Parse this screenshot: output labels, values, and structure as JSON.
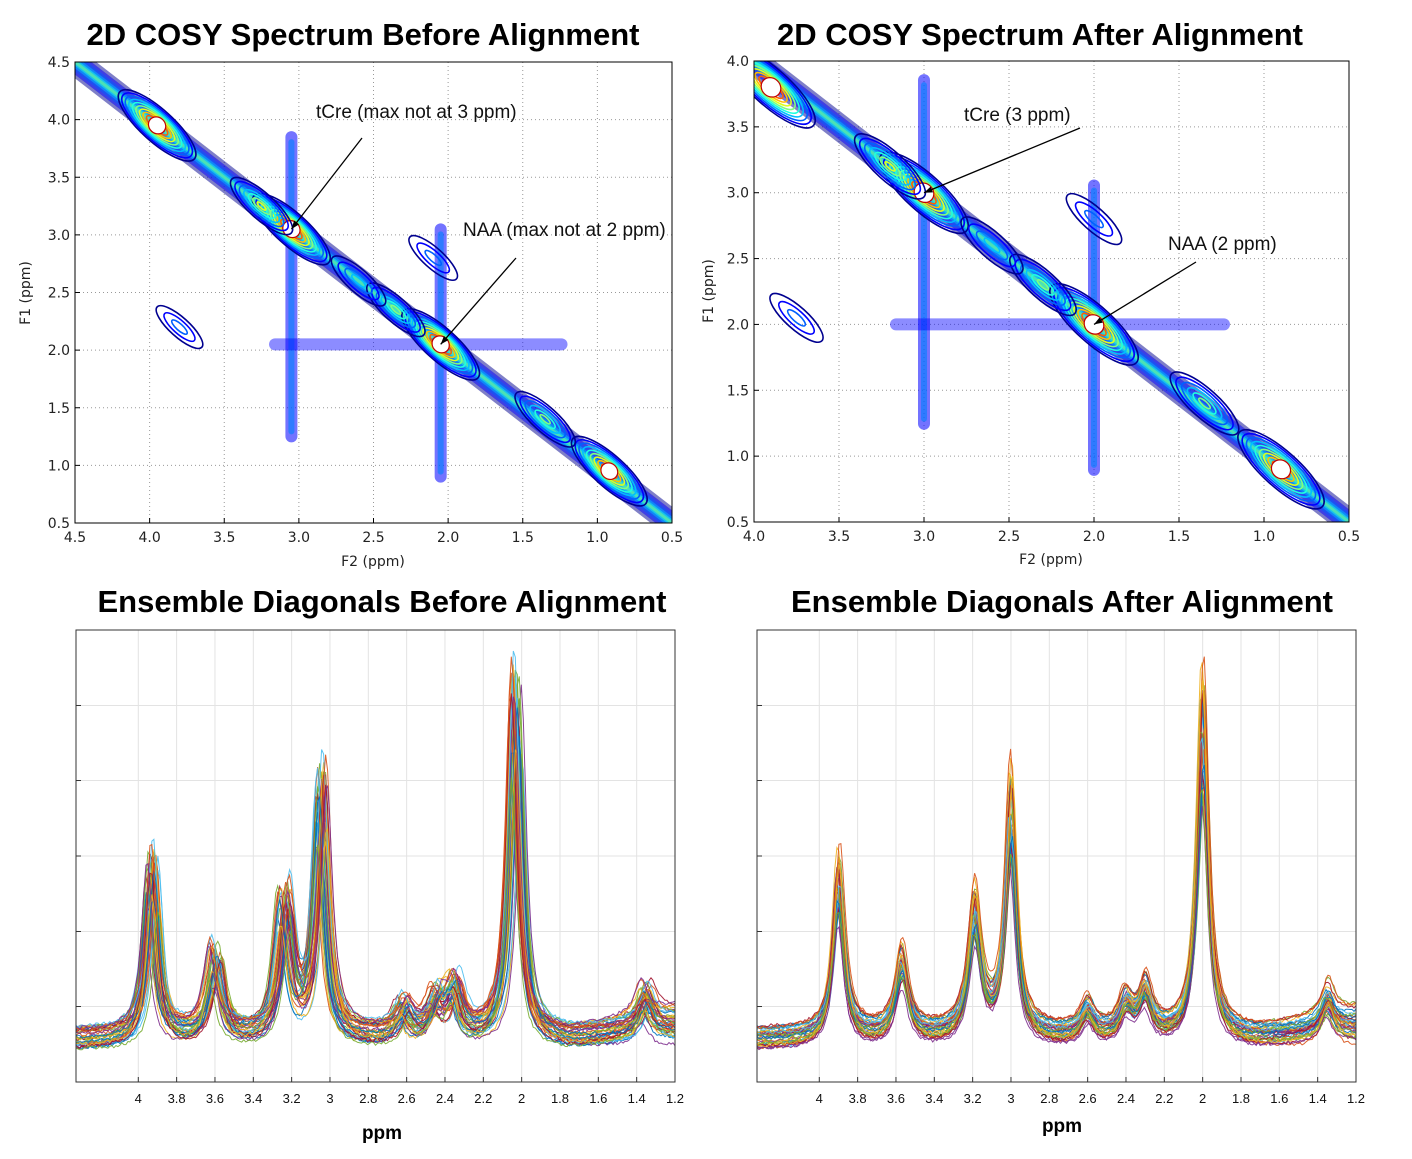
{
  "chart_data": [
    {
      "id": "cosy_before",
      "type": "contour",
      "title": "2D COSY Spectrum Before Alignment",
      "xlabel": "F2 (ppm)",
      "ylabel": "F1 (ppm)",
      "xlim": [
        4.5,
        0.5
      ],
      "ylim": [
        0.5,
        4.5
      ],
      "xticks": [
        "4.5",
        "4.0",
        "3.5",
        "3.0",
        "2.5",
        "2.0",
        "1.5",
        "1.0",
        "0.5"
      ],
      "yticks": [
        "0.5",
        "1.0",
        "1.5",
        "2.0",
        "2.5",
        "3.0",
        "3.5",
        "4.0",
        "4.5"
      ],
      "peaks": [
        {
          "x": 3.05,
          "y": 3.05,
          "a": 1.0
        },
        {
          "x": 2.05,
          "y": 2.05,
          "a": 1.0
        },
        {
          "x": 3.95,
          "y": 3.95,
          "a": 1.0
        },
        {
          "x": 0.92,
          "y": 0.95,
          "a": 0.95
        },
        {
          "x": 1.35,
          "y": 1.4,
          "a": 0.55
        },
        {
          "x": 2.35,
          "y": 2.35,
          "a": 0.5
        },
        {
          "x": 2.6,
          "y": 2.6,
          "a": 0.4
        },
        {
          "x": 3.25,
          "y": 3.25,
          "a": 0.6
        },
        {
          "x": 3.8,
          "y": 2.2,
          "a": 0.2
        },
        {
          "x": 2.1,
          "y": 2.8,
          "a": 0.25
        }
      ],
      "annotations": [
        {
          "label": "tCre (max not at 3 ppm)",
          "x": 3.05,
          "y": 3.05
        },
        {
          "label": "NAA (max not at 2 ppm)",
          "x": 2.05,
          "y": 2.05
        }
      ]
    },
    {
      "id": "cosy_after",
      "type": "contour",
      "title": "2D COSY Spectrum After Alignment",
      "xlabel": "F2 (ppm)",
      "ylabel": "F1 (ppm)",
      "xlim": [
        4.0,
        0.5
      ],
      "ylim": [
        0.5,
        4.0
      ],
      "xticks": [
        "4.0",
        "3.5",
        "3.0",
        "2.5",
        "2.0",
        "1.5",
        "1.0",
        "0.5"
      ],
      "yticks": [
        "0.5",
        "1.0",
        "1.5",
        "2.0",
        "2.5",
        "3.0",
        "3.5",
        "4.0"
      ],
      "peaks": [
        {
          "x": 3.0,
          "y": 3.0,
          "a": 1.0
        },
        {
          "x": 2.0,
          "y": 2.0,
          "a": 1.0
        },
        {
          "x": 3.9,
          "y": 3.8,
          "a": 1.0
        },
        {
          "x": 0.9,
          "y": 0.9,
          "a": 0.95
        },
        {
          "x": 1.35,
          "y": 1.4,
          "a": 0.55
        },
        {
          "x": 2.3,
          "y": 2.3,
          "a": 0.5
        },
        {
          "x": 2.6,
          "y": 2.6,
          "a": 0.4
        },
        {
          "x": 3.2,
          "y": 3.2,
          "a": 0.6
        },
        {
          "x": 3.75,
          "y": 2.05,
          "a": 0.2
        },
        {
          "x": 2.0,
          "y": 2.8,
          "a": 0.25
        }
      ],
      "annotations": [
        {
          "label": "tCre (3 ppm)",
          "x": 3.0,
          "y": 3.0
        },
        {
          "label": "NAA (2 ppm)",
          "x": 2.0,
          "y": 2.0
        }
      ]
    },
    {
      "id": "diag_before",
      "type": "line",
      "title": "Ensemble Diagonals Before Alignment",
      "xlabel": "ppm",
      "xlim": [
        4.2,
        1.2
      ],
      "xticks": [
        "4",
        "3.8",
        "3.6",
        "3.4",
        "3.2",
        "3",
        "2.8",
        "2.6",
        "2.4",
        "2.2",
        "2",
        "1.8",
        "1.6",
        "1.4",
        "1.2"
      ],
      "ylim": [
        0,
        1
      ],
      "n_series": 40,
      "peaks": [
        {
          "ppm": 3.93,
          "height": 0.36
        },
        {
          "ppm": 3.6,
          "height": 0.17
        },
        {
          "ppm": 3.24,
          "height": 0.28
        },
        {
          "ppm": 3.05,
          "height": 0.52
        },
        {
          "ppm": 2.62,
          "height": 0.06
        },
        {
          "ppm": 2.45,
          "height": 0.07
        },
        {
          "ppm": 2.35,
          "height": 0.1
        },
        {
          "ppm": 2.03,
          "height": 0.72
        },
        {
          "ppm": 1.35,
          "height": 0.07
        }
      ],
      "peak_jitter_ppm": 0.035
    },
    {
      "id": "diag_after",
      "type": "line",
      "title": "Ensemble Diagonals After Alignment",
      "xlabel": "ppm",
      "xlim": [
        4.2,
        1.2
      ],
      "xticks": [
        "4",
        "3.8",
        "3.6",
        "3.4",
        "3.2",
        "3",
        "2.8",
        "2.6",
        "2.4",
        "2.2",
        "2",
        "1.8",
        "1.6",
        "1.4",
        "1.2"
      ],
      "ylim": [
        0,
        1
      ],
      "n_series": 40,
      "peaks": [
        {
          "ppm": 3.9,
          "height": 0.36
        },
        {
          "ppm": 3.57,
          "height": 0.17
        },
        {
          "ppm": 3.19,
          "height": 0.28
        },
        {
          "ppm": 3.0,
          "height": 0.52
        },
        {
          "ppm": 2.6,
          "height": 0.06
        },
        {
          "ppm": 2.4,
          "height": 0.07
        },
        {
          "ppm": 2.3,
          "height": 0.1
        },
        {
          "ppm": 2.0,
          "height": 0.72
        },
        {
          "ppm": 1.35,
          "height": 0.07
        }
      ],
      "peak_jitter_ppm": 0.008
    }
  ]
}
